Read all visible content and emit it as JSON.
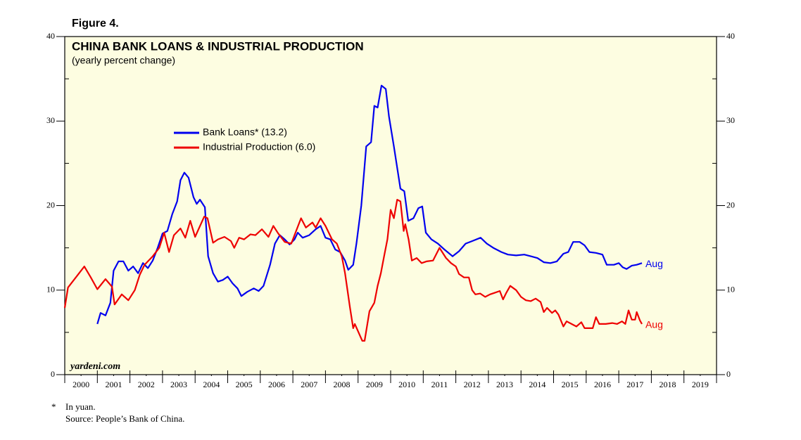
{
  "chart_data": {
    "type": "line",
    "figure_label": "Figure 4.",
    "title": "CHINA BANK LOANS & INDUSTRIAL PRODUCTION",
    "subtitle": "(yearly percent change)",
    "watermark": "yardeni.com",
    "footnote_marker": "*",
    "footnote": "In yuan.",
    "source": "Source: People’s Bank of China.",
    "xlim": [
      2000,
      2020
    ],
    "xticks": [
      {
        "value": 2000.5,
        "label": "2000"
      },
      {
        "value": 2001.5,
        "label": "2001"
      },
      {
        "value": 2002.5,
        "label": "2002"
      },
      {
        "value": 2003.5,
        "label": "2003"
      },
      {
        "value": 2004.5,
        "label": "2004"
      },
      {
        "value": 2005.5,
        "label": "2005"
      },
      {
        "value": 2006.5,
        "label": "2006"
      },
      {
        "value": 2007.5,
        "label": "2007"
      },
      {
        "value": 2008.5,
        "label": "2008"
      },
      {
        "value": 2009.5,
        "label": "2009"
      },
      {
        "value": 2010.5,
        "label": "2010"
      },
      {
        "value": 2011.5,
        "label": "2011"
      },
      {
        "value": 2012.5,
        "label": "2012"
      },
      {
        "value": 2013.5,
        "label": "2013"
      },
      {
        "value": 2014.5,
        "label": "2014"
      },
      {
        "value": 2015.5,
        "label": "2015"
      },
      {
        "value": 2016.5,
        "label": "2016"
      },
      {
        "value": 2017.5,
        "label": "2017"
      },
      {
        "value": 2018.5,
        "label": "2018"
      },
      {
        "value": 2019.5,
        "label": "2019"
      }
    ],
    "ylim": [
      0,
      40
    ],
    "yticks": [
      0,
      10,
      20,
      30,
      40
    ],
    "right_axis": true,
    "series": [
      {
        "name": "Bank Loans* (13.2)",
        "color": "#0000ee",
        "end_label": "Aug",
        "x": [
          2001.0,
          2001.1,
          2001.25,
          2001.4,
          2001.5,
          2001.65,
          2001.8,
          2001.95,
          2002.1,
          2002.25,
          2002.4,
          2002.55,
          2002.7,
          2002.85,
          2003.0,
          2003.15,
          2003.3,
          2003.45,
          2003.55,
          2003.67,
          2003.8,
          2003.95,
          2004.05,
          2004.15,
          2004.3,
          2004.4,
          2004.55,
          2004.7,
          2004.85,
          2005.0,
          2005.15,
          2005.3,
          2005.42,
          2005.6,
          2005.8,
          2005.95,
          2006.1,
          2006.3,
          2006.45,
          2006.6,
          2006.75,
          2006.9,
          2007.05,
          2007.15,
          2007.3,
          2007.5,
          2007.7,
          2007.85,
          2008.0,
          2008.15,
          2008.3,
          2008.45,
          2008.6,
          2008.7,
          2008.85,
          2008.95,
          2009.1,
          2009.25,
          2009.4,
          2009.5,
          2009.6,
          2009.72,
          2009.85,
          2009.95,
          2010.1,
          2010.3,
          2010.42,
          2010.54,
          2010.7,
          2010.85,
          2010.97,
          2011.08,
          2011.25,
          2011.45,
          2011.65,
          2011.9,
          2012.1,
          2012.3,
          2012.5,
          2012.76,
          2012.95,
          2013.15,
          2013.4,
          2013.6,
          2013.85,
          2014.1,
          2014.3,
          2014.5,
          2014.7,
          2014.9,
          2015.1,
          2015.3,
          2015.45,
          2015.6,
          2015.8,
          2015.95,
          2016.1,
          2016.3,
          2016.5,
          2016.63,
          2016.85,
          2017.0,
          2017.12,
          2017.24,
          2017.4,
          2017.55,
          2017.71
        ],
        "values": [
          6.0,
          7.3,
          7.0,
          8.5,
          12.3,
          13.4,
          13.4,
          12.3,
          12.8,
          12.0,
          13.2,
          12.6,
          13.5,
          15.0,
          16.7,
          17.0,
          19.0,
          20.5,
          23.0,
          23.9,
          23.3,
          21.0,
          20.2,
          20.7,
          19.8,
          14.0,
          12.0,
          11.0,
          11.2,
          11.6,
          10.8,
          10.2,
          9.3,
          9.8,
          10.2,
          9.9,
          10.5,
          13.0,
          15.5,
          16.5,
          16.0,
          15.4,
          16.0,
          16.8,
          16.2,
          16.5,
          17.2,
          17.6,
          16.2,
          16.0,
          14.8,
          14.5,
          13.5,
          12.4,
          13.0,
          15.5,
          20.0,
          27.0,
          27.5,
          31.8,
          31.6,
          34.2,
          33.8,
          30.5,
          27.0,
          22.0,
          21.7,
          18.2,
          18.5,
          19.7,
          19.9,
          16.8,
          16.0,
          15.5,
          14.8,
          14.0,
          14.6,
          15.5,
          15.8,
          16.2,
          15.5,
          15.0,
          14.5,
          14.2,
          14.1,
          14.2,
          14.0,
          13.8,
          13.3,
          13.2,
          13.4,
          14.3,
          14.5,
          15.7,
          15.7,
          15.3,
          14.5,
          14.4,
          14.2,
          13.0,
          13.0,
          13.2,
          12.7,
          12.5,
          12.9,
          13.0,
          13.2
        ]
      },
      {
        "name": "Industrial Production (6.0)",
        "color": "#ee0000",
        "end_label": "Aug",
        "x": [
          2000.0,
          2000.1,
          2000.3,
          2000.6,
          2000.8,
          2001.0,
          2001.25,
          2001.45,
          2001.53,
          2001.75,
          2001.95,
          2002.15,
          2002.3,
          2002.45,
          2002.7,
          2002.9,
          2003.05,
          2003.2,
          2003.35,
          2003.55,
          2003.7,
          2003.85,
          2004.0,
          2004.28,
          2004.38,
          2004.55,
          2004.7,
          2004.9,
          2005.1,
          2005.2,
          2005.35,
          2005.5,
          2005.7,
          2005.85,
          2006.05,
          2006.25,
          2006.4,
          2006.55,
          2006.75,
          2006.95,
          2007.05,
          2007.25,
          2007.4,
          2007.6,
          2007.7,
          2007.85,
          2008.0,
          2008.2,
          2008.35,
          2008.5,
          2008.6,
          2008.75,
          2008.85,
          2008.9,
          2009.13,
          2009.2,
          2009.35,
          2009.5,
          2009.6,
          2009.7,
          2009.8,
          2009.9,
          2010.0,
          2010.1,
          2010.2,
          2010.3,
          2010.4,
          2010.45,
          2010.55,
          2010.65,
          2010.8,
          2010.95,
          2011.1,
          2011.3,
          2011.5,
          2011.7,
          2011.85,
          2012.0,
          2012.1,
          2012.25,
          2012.4,
          2012.5,
          2012.6,
          2012.75,
          2012.9,
          2013.05,
          2013.2,
          2013.35,
          2013.45,
          2013.55,
          2013.67,
          2013.85,
          2014.0,
          2014.15,
          2014.3,
          2014.45,
          2014.6,
          2014.7,
          2014.8,
          2014.95,
          2015.05,
          2015.15,
          2015.3,
          2015.4,
          2015.55,
          2015.7,
          2015.85,
          2015.95,
          2016.1,
          2016.2,
          2016.3,
          2016.4,
          2016.6,
          2016.8,
          2016.95,
          2017.1,
          2017.2,
          2017.3,
          2017.4,
          2017.5,
          2017.55,
          2017.65,
          2017.71
        ],
        "values": [
          7.9,
          10.3,
          11.3,
          12.8,
          11.5,
          10.1,
          11.3,
          10.4,
          8.3,
          9.5,
          8.8,
          10.0,
          11.8,
          13.0,
          14.0,
          15.0,
          16.8,
          14.5,
          16.5,
          17.3,
          16.2,
          18.2,
          16.3,
          18.7,
          18.5,
          15.6,
          16.0,
          16.3,
          15.8,
          15.0,
          16.2,
          16.0,
          16.6,
          16.5,
          17.2,
          16.3,
          17.6,
          16.7,
          15.7,
          15.5,
          16.5,
          18.5,
          17.4,
          18.0,
          17.4,
          18.5,
          17.6,
          16.0,
          15.5,
          14.0,
          12.0,
          8.0,
          5.5,
          6.0,
          4.0,
          4.0,
          7.5,
          8.5,
          10.5,
          12.0,
          14.0,
          16.0,
          19.5,
          18.5,
          20.7,
          20.5,
          17.0,
          17.8,
          16.0,
          13.5,
          13.8,
          13.2,
          13.4,
          13.5,
          15.0,
          13.8,
          13.2,
          12.8,
          11.9,
          11.5,
          11.5,
          10.0,
          9.5,
          9.6,
          9.2,
          9.5,
          9.7,
          9.9,
          8.9,
          9.7,
          10.5,
          10.0,
          9.2,
          8.8,
          8.7,
          9.0,
          8.6,
          7.4,
          7.9,
          7.3,
          7.6,
          7.1,
          5.7,
          6.3,
          6.0,
          5.7,
          6.2,
          5.5,
          5.5,
          5.5,
          6.8,
          6.0,
          6.0,
          6.1,
          6.0,
          6.3,
          6.0,
          7.6,
          6.5,
          6.5,
          7.4,
          6.4,
          6.0
        ]
      }
    ]
  }
}
